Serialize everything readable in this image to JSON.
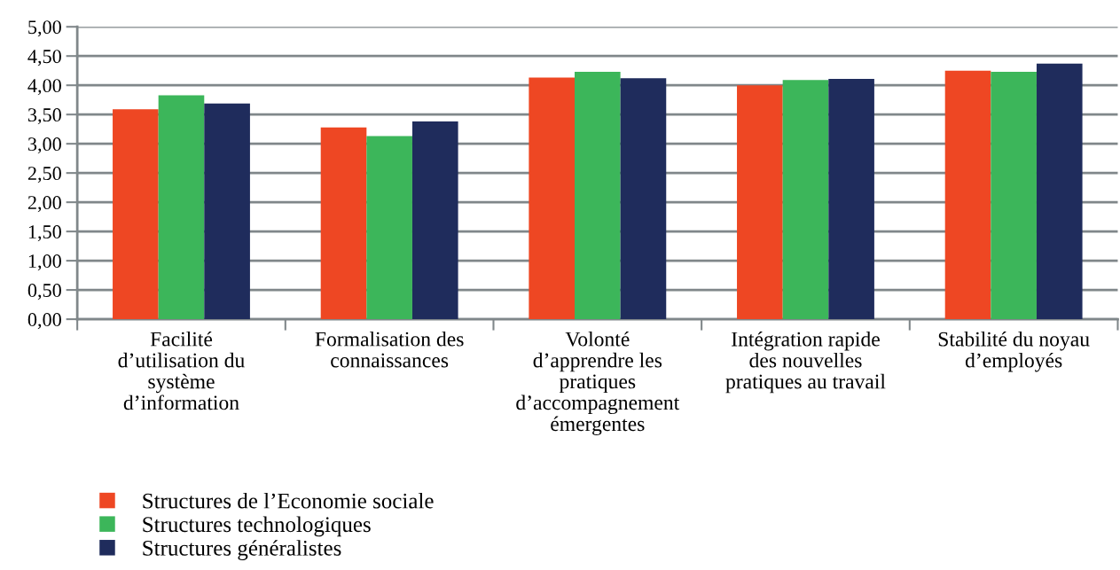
{
  "chart_data": {
    "type": "bar",
    "categories": [
      "Facilité\nd’utilisation du\nsystème\nd’information",
      "Formalisation des\nconnaissances",
      "Volonté\nd’apprendre les\npratiques\nd’accompagnement\némergentes",
      "Intégration rapide\ndes nouvelles\npratiques au travail",
      "Stabilité du noyau\nd’employés"
    ],
    "series": [
      {
        "name": "Structures de l’Economie sociale",
        "color": "#ee4723",
        "values": [
          3.59,
          3.28,
          4.13,
          4.0,
          4.25
        ]
      },
      {
        "name": "Structures technologiques",
        "color": "#3cb65a",
        "values": [
          3.83,
          3.13,
          4.23,
          4.09,
          4.23
        ]
      },
      {
        "name": "Structures généralistes",
        "color": "#1f2c5c",
        "values": [
          3.69,
          3.38,
          4.12,
          4.11,
          4.37
        ]
      }
    ],
    "ylim": [
      0,
      5
    ],
    "yticks": [
      {
        "value": 0,
        "label": "0,00"
      },
      {
        "value": 0.5,
        "label": "0,50"
      },
      {
        "value": 1,
        "label": "1,00"
      },
      {
        "value": 1.5,
        "label": "1,50"
      },
      {
        "value": 2,
        "label": "2,00"
      },
      {
        "value": 2.5,
        "label": "2,50"
      },
      {
        "value": 3,
        "label": "3,00"
      },
      {
        "value": 3.5,
        "label": "3,50"
      },
      {
        "value": 4,
        "label": "4,00"
      },
      {
        "value": 4.5,
        "label": "4,50"
      },
      {
        "value": 5,
        "label": "5,00"
      }
    ],
    "grid": "y",
    "legend": "bottom left"
  }
}
